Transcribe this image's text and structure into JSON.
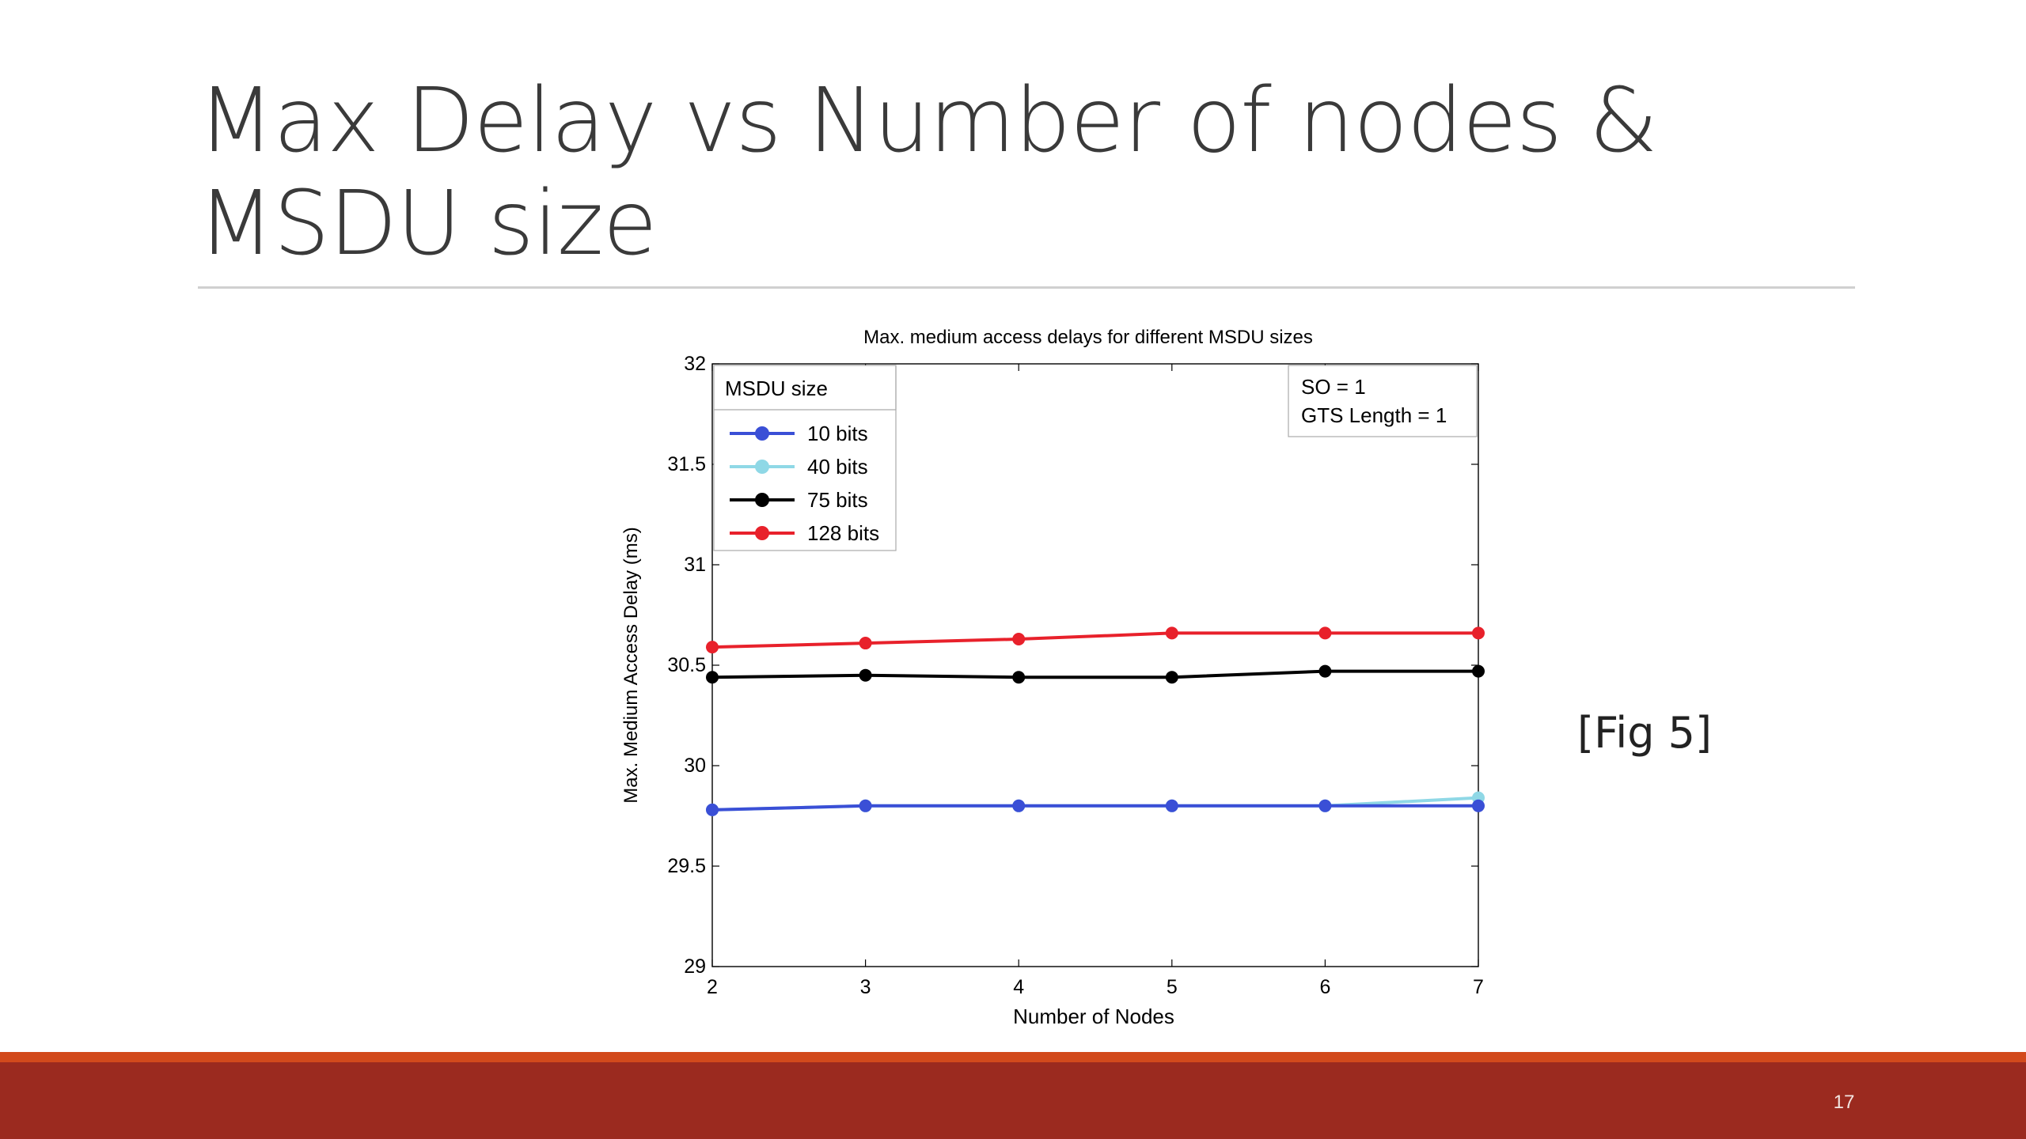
{
  "slide": {
    "title": "Max Delay vs Number of nodes & MSDU size",
    "figure_caption": "[Fig 5]",
    "page_number": "17"
  },
  "colors": {
    "footer_bar": "#9b2a1f",
    "footer_stripe": "#d24a1c"
  },
  "chart_data": {
    "type": "line",
    "title": "Max. medium access delays for different MSDU sizes",
    "xlabel": "Number of Nodes",
    "ylabel": "Max. Medium Access Delay (ms)",
    "x": [
      2,
      3,
      4,
      5,
      6,
      7
    ],
    "xlim": [
      2,
      7
    ],
    "ylim": [
      29,
      32
    ],
    "xticks": [
      "2",
      "3",
      "4",
      "5",
      "6",
      "7"
    ],
    "yticks": [
      "29",
      "29.5",
      "30",
      "30.5",
      "31",
      "31.5",
      "32"
    ],
    "grid": false,
    "legend": {
      "title": "MSDU size",
      "position": "top-left"
    },
    "annotation": [
      "SO = 1",
      "GTS Length = 1"
    ],
    "annotation_position": "top-right",
    "series": [
      {
        "name": "40 bits",
        "color": "#8fd8e6",
        "values": [
          29.78,
          29.8,
          29.8,
          29.8,
          29.8,
          29.84
        ]
      },
      {
        "name": "10 bits",
        "color": "#3a4fd6",
        "values": [
          29.78,
          29.8,
          29.8,
          29.8,
          29.8,
          29.8
        ]
      },
      {
        "name": "75 bits",
        "color": "#000000",
        "values": [
          30.44,
          30.45,
          30.44,
          30.44,
          30.47,
          30.47
        ]
      },
      {
        "name": "128 bits",
        "color": "#e8212b",
        "values": [
          30.59,
          30.61,
          30.63,
          30.66,
          30.66,
          30.66
        ]
      }
    ],
    "legend_order": [
      "10 bits",
      "40 bits",
      "75 bits",
      "128 bits"
    ]
  }
}
